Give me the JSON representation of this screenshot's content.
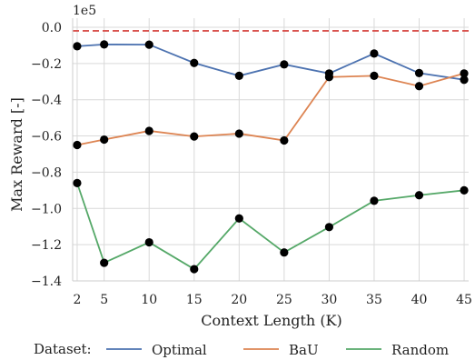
{
  "chart_data": {
    "type": "line",
    "xlabel": "Context Length (K)",
    "ylabel": "Max Reward [-]",
    "y_offset_text": "1e5",
    "x": [
      2,
      5,
      10,
      15,
      20,
      25,
      30,
      35,
      40,
      45
    ],
    "x_ticks": [
      "2",
      "5",
      "10",
      "15",
      "20",
      "25",
      "30",
      "35",
      "40",
      "45"
    ],
    "y_ticks": [
      "0.0",
      "−0.2",
      "−0.4",
      "−0.6",
      "−0.8",
      "−1.0",
      "−1.2",
      "−1.4"
    ],
    "y_tick_values": [
      0.0,
      -0.2,
      -0.4,
      -0.6,
      -0.8,
      -1.0,
      -1.2,
      -1.4
    ],
    "xlim": [
      1.5,
      45.5
    ],
    "ylim": [
      -1.4,
      0.05
    ],
    "grid": true,
    "reference_line": {
      "y": -0.02,
      "color": "#d9534f",
      "style": "dashed"
    },
    "legend": {
      "title": "Dataset:",
      "placement": "bottom"
    },
    "series": [
      {
        "name": "Optimal",
        "color": "#4c72b0",
        "values": [
          -0.105,
          -0.095,
          -0.096,
          -0.197,
          -0.268,
          -0.205,
          -0.255,
          -0.145,
          -0.253,
          -0.29
        ]
      },
      {
        "name": "BaU",
        "color": "#dd8452",
        "values": [
          -0.65,
          -0.62,
          -0.572,
          -0.603,
          -0.587,
          -0.625,
          -0.275,
          -0.268,
          -0.325,
          -0.255
        ]
      },
      {
        "name": "Random",
        "color": "#55a868",
        "values": [
          -0.86,
          -1.3,
          -1.187,
          -1.335,
          -1.055,
          -1.243,
          -1.103,
          -0.958,
          -0.927,
          -0.9
        ]
      }
    ],
    "marker_color": "#000000"
  }
}
